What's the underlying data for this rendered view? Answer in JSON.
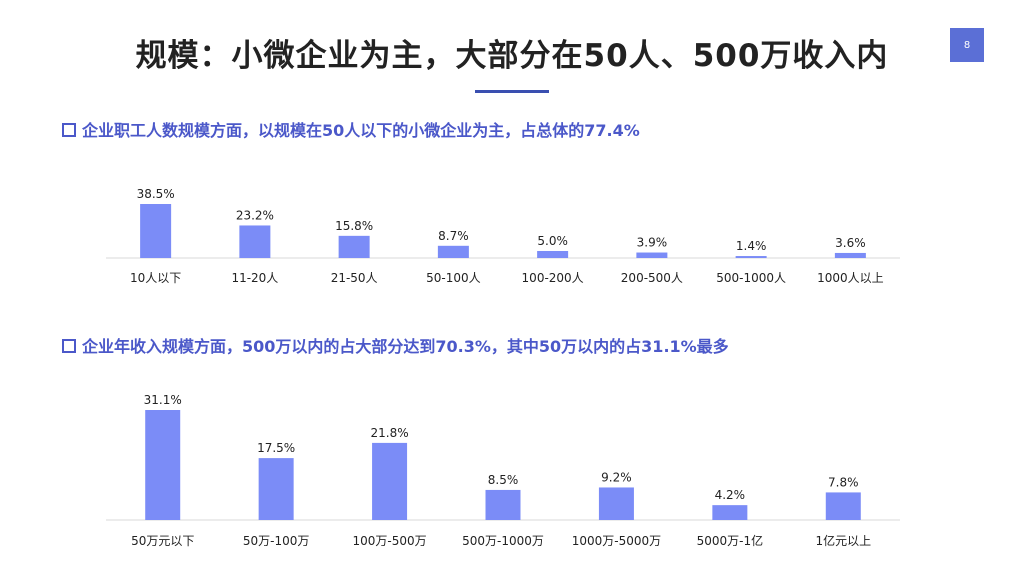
{
  "header": {
    "title": "规模：小微企业为主，大部分在50人、500万收入内",
    "page_number": "8"
  },
  "sections": [
    {
      "label": "企业职工人数规模方面，以规模在50人以下的小微企业为主，占总体的77.4%"
    },
    {
      "label": "企业年收入规模方面，500万以内的占大部分达到70.3%，其中50万以内的占31.1%最多"
    }
  ],
  "colors": {
    "bar": "#7b8cf7",
    "accent": "#4b58c9",
    "page_badge": "#5b6fd6"
  },
  "chart_data": [
    {
      "type": "bar",
      "categories": [
        "10人以下",
        "11-20人",
        "21-50人",
        "50-100人",
        "100-200人",
        "200-500人",
        "500-1000人",
        "1000人以上"
      ],
      "values": [
        38.5,
        23.2,
        15.8,
        8.7,
        5.0,
        3.9,
        1.4,
        3.6
      ],
      "value_labels": [
        "38.5%",
        "23.2%",
        "15.8%",
        "8.7%",
        "5.0%",
        "3.9%",
        "1.4%",
        "3.6%"
      ],
      "unit": "%"
    },
    {
      "type": "bar",
      "categories": [
        "50万元以下",
        "50万-100万",
        "100万-500万",
        "500万-1000万",
        "1000万-5000万",
        "5000万-1亿",
        "1亿元以上"
      ],
      "values": [
        31.1,
        17.5,
        21.8,
        8.5,
        9.2,
        4.2,
        7.8
      ],
      "value_labels": [
        "31.1%",
        "17.5%",
        "21.8%",
        "8.5%",
        "9.2%",
        "4.2%",
        "7.8%"
      ],
      "unit": "%"
    }
  ]
}
